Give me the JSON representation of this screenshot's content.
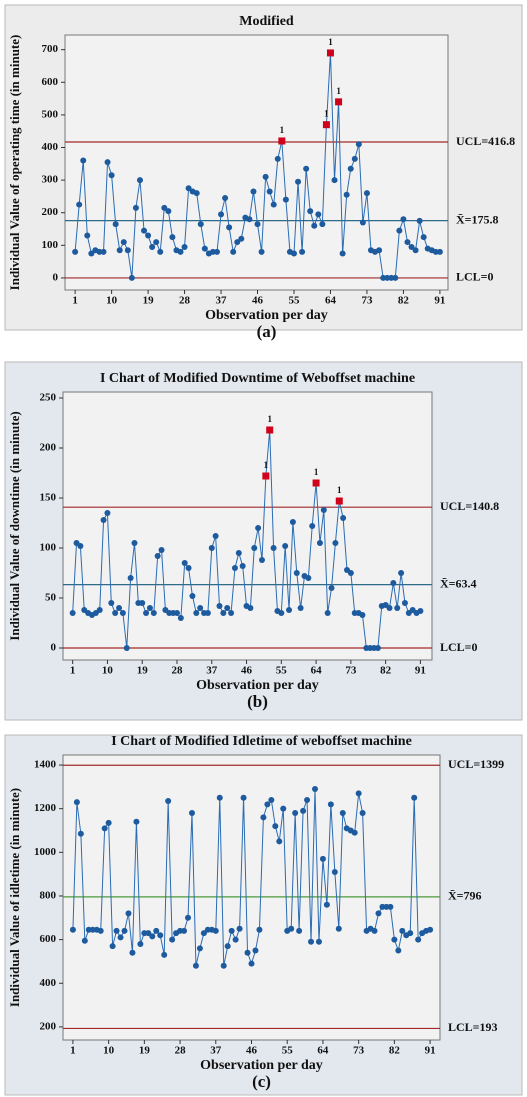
{
  "chart_data": [
    {
      "type": "line",
      "title": "Modified",
      "xlabel": "Observation per day",
      "ylabel": "Individual Value of operating time (in minute)",
      "panel_label": "(a)",
      "x": [
        1,
        2,
        3,
        4,
        5,
        6,
        7,
        8,
        9,
        10,
        11,
        12,
        13,
        14,
        15,
        16,
        17,
        18,
        19,
        20,
        21,
        22,
        23,
        24,
        25,
        26,
        27,
        28,
        29,
        30,
        31,
        32,
        33,
        34,
        35,
        36,
        37,
        38,
        39,
        40,
        41,
        42,
        43,
        44,
        45,
        46,
        47,
        48,
        49,
        50,
        51,
        52,
        53,
        54,
        55,
        56,
        57,
        58,
        59,
        60,
        61,
        62,
        63,
        64,
        65,
        66,
        67,
        68,
        69,
        70,
        71,
        72,
        73,
        74,
        75,
        76,
        77,
        78,
        79,
        80,
        81,
        82,
        83,
        84,
        85,
        86,
        87,
        88,
        89,
        90,
        91
      ],
      "values": [
        80,
        225,
        360,
        130,
        75,
        85,
        80,
        80,
        355,
        315,
        165,
        85,
        110,
        85,
        0,
        215,
        300,
        145,
        130,
        95,
        110,
        80,
        215,
        205,
        125,
        85,
        80,
        95,
        275,
        265,
        260,
        165,
        90,
        75,
        80,
        80,
        195,
        245,
        155,
        80,
        110,
        120,
        185,
        180,
        265,
        165,
        80,
        310,
        265,
        225,
        365,
        420,
        240,
        80,
        75,
        295,
        80,
        335,
        205,
        160,
        195,
        165,
        470,
        690,
        300,
        540,
        75,
        255,
        335,
        365,
        410,
        170,
        260,
        85,
        80,
        85,
        0,
        0,
        0,
        0,
        145,
        180,
        110,
        95,
        85,
        175,
        125,
        90,
        85,
        80,
        80
      ],
      "color": "#2a6cb3",
      "flagged": [
        52,
        63,
        64,
        66
      ],
      "flag_color": "#d0021b",
      "flag_label": "1",
      "control_lines": [
        {
          "value": 416.8,
          "label": "UCL=416.8",
          "color": "#a3282a"
        },
        {
          "value": 175.8,
          "label": "X̄=175.8",
          "color": "#2e6a8a"
        },
        {
          "value": 0,
          "label": "LCL=0",
          "color": "#a3282a"
        }
      ],
      "xlim": [
        -1.5,
        93
      ],
      "xticks": [
        1,
        10,
        19,
        28,
        37,
        46,
        55,
        64,
        73,
        82,
        91
      ],
      "ylim": [
        -37,
        745
      ],
      "yticks": [
        0,
        100,
        200,
        300,
        400,
        500,
        600,
        700
      ]
    },
    {
      "type": "line",
      "title": "I Chart of Modified Downtime of Weboffset machine",
      "xlabel": "Observation per day",
      "ylabel": "Individual Value of downtime (in minute)",
      "panel_label": "(b)",
      "x": [
        1,
        2,
        3,
        4,
        5,
        6,
        7,
        8,
        9,
        10,
        11,
        12,
        13,
        14,
        15,
        16,
        17,
        18,
        19,
        20,
        21,
        22,
        23,
        24,
        25,
        26,
        27,
        28,
        29,
        30,
        31,
        32,
        33,
        34,
        35,
        36,
        37,
        38,
        39,
        40,
        41,
        42,
        43,
        44,
        45,
        46,
        47,
        48,
        49,
        50,
        51,
        52,
        53,
        54,
        55,
        56,
        57,
        58,
        59,
        60,
        61,
        62,
        63,
        64,
        65,
        66,
        67,
        68,
        69,
        70,
        71,
        72,
        73,
        74,
        75,
        76,
        77,
        78,
        79,
        80,
        81,
        82,
        83,
        84,
        85,
        86,
        87,
        88,
        89,
        90,
        91
      ],
      "values": [
        35,
        105,
        102,
        38,
        35,
        33,
        35,
        38,
        128,
        135,
        45,
        35,
        40,
        35,
        0,
        70,
        105,
        45,
        45,
        35,
        40,
        35,
        92,
        98,
        38,
        35,
        35,
        35,
        30,
        85,
        80,
        52,
        35,
        40,
        35,
        35,
        100,
        112,
        42,
        35,
        40,
        35,
        80,
        95,
        82,
        42,
        40,
        100,
        120,
        88,
        172,
        218,
        100,
        37,
        35,
        102,
        38,
        126,
        75,
        40,
        72,
        70,
        122,
        165,
        105,
        138,
        35,
        60,
        105,
        147,
        130,
        78,
        75,
        35,
        35,
        33,
        0,
        0,
        0,
        0,
        42,
        43,
        40,
        65,
        40,
        75,
        45,
        35,
        38,
        35,
        37
      ],
      "color": "#2a6cb3",
      "flagged": [
        51,
        52,
        64,
        70
      ],
      "flag_color": "#d0021b",
      "flag_label": "1",
      "control_lines": [
        {
          "value": 140.8,
          "label": "UCL=140.8",
          "color": "#a3282a"
        },
        {
          "value": 63.4,
          "label": "X̄=63.4",
          "color": "#2e6a8a"
        },
        {
          "value": 0,
          "label": "LCL=0",
          "color": "#a3282a"
        }
      ],
      "xlim": [
        -1.5,
        94
      ],
      "xticks": [
        1,
        10,
        19,
        28,
        37,
        46,
        55,
        64,
        73,
        82,
        91
      ],
      "ylim": [
        -12,
        256
      ],
      "yticks": [
        0,
        50,
        100,
        150,
        200,
        250
      ]
    },
    {
      "type": "line",
      "title": "I Chart of Modified Idletime of weboffset machine",
      "xlabel": "Observation per day",
      "ylabel": "Individual Value of idletime (in minute)",
      "panel_label": "(c)",
      "x": [
        1,
        2,
        3,
        4,
        5,
        6,
        7,
        8,
        9,
        10,
        11,
        12,
        13,
        14,
        15,
        16,
        17,
        18,
        19,
        20,
        21,
        22,
        23,
        24,
        25,
        26,
        27,
        28,
        29,
        30,
        31,
        32,
        33,
        34,
        35,
        36,
        37,
        38,
        39,
        40,
        41,
        42,
        43,
        44,
        45,
        46,
        47,
        48,
        49,
        50,
        51,
        52,
        53,
        54,
        55,
        56,
        57,
        58,
        59,
        60,
        61,
        62,
        63,
        64,
        65,
        66,
        67,
        68,
        69,
        70,
        71,
        72,
        73,
        74,
        75,
        76,
        77,
        78,
        79,
        80,
        81,
        82,
        83,
        84,
        85,
        86,
        87,
        88,
        89,
        90,
        91
      ],
      "values": [
        645,
        1230,
        1085,
        595,
        645,
        645,
        645,
        640,
        1110,
        1135,
        570,
        640,
        610,
        640,
        720,
        540,
        1140,
        580,
        630,
        630,
        615,
        640,
        620,
        530,
        1235,
        600,
        630,
        640,
        640,
        700,
        1180,
        480,
        560,
        630,
        645,
        645,
        640,
        1250,
        480,
        570,
        640,
        600,
        650,
        1250,
        540,
        490,
        550,
        645,
        1160,
        1220,
        1240,
        1120,
        1050,
        1200,
        640,
        650,
        1180,
        640,
        1190,
        1240,
        590,
        1290,
        590,
        970,
        760,
        1220,
        910,
        650,
        1180,
        1110,
        1100,
        1090,
        1270,
        1180,
        640,
        650,
        640,
        720,
        750,
        750,
        750,
        600,
        550,
        640,
        620,
        630,
        1250,
        600,
        630,
        640,
        645
      ],
      "color": "#2a6cb3",
      "flagged": [],
      "flag_color": "#d0021b",
      "flag_label": "1",
      "control_lines": [
        {
          "value": 1399,
          "label": "UCL=1399",
          "color": "#a3282a"
        },
        {
          "value": 796,
          "label": "X̄=796",
          "color": "#4a9a3a"
        },
        {
          "value": 193,
          "label": "LCL=193",
          "color": "#a3282a"
        }
      ],
      "xlim": [
        -1.5,
        93.5
      ],
      "xticks": [
        1,
        10,
        19,
        28,
        37,
        46,
        55,
        64,
        73,
        82,
        91
      ],
      "ylim": [
        140,
        1446
      ],
      "yticks": [
        200,
        400,
        600,
        800,
        1000,
        1200,
        1400
      ]
    }
  ]
}
